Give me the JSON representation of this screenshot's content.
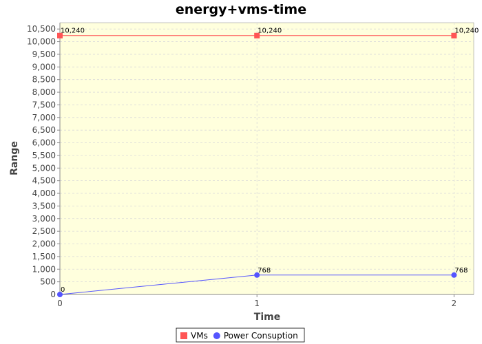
{
  "chart_data": {
    "type": "line",
    "title": "energy+vms-time",
    "xlabel": "Time",
    "ylabel": "Range",
    "x": [
      0,
      1,
      2
    ],
    "xlim": [
      0,
      2.1
    ],
    "ylim": [
      0,
      10750
    ],
    "xticks": [
      0,
      1,
      2
    ],
    "yticks": [
      0,
      500,
      1000,
      1500,
      2000,
      2500,
      3000,
      3500,
      4000,
      4500,
      5000,
      5500,
      6000,
      6500,
      7000,
      7500,
      8000,
      8500,
      9000,
      9500,
      10000,
      10500
    ],
    "grid": true,
    "legend_position": "bottom-center",
    "plot_background": "#ffffdd",
    "series": [
      {
        "name": "VMs",
        "values": [
          10240,
          10240,
          10240
        ],
        "labels": [
          "10,240",
          "10,240",
          "10,240"
        ],
        "color": "#ff5555",
        "marker": "square"
      },
      {
        "name": "Power Consuption",
        "values": [
          0,
          768,
          768
        ],
        "labels": [
          "0",
          "768",
          "768"
        ],
        "color": "#5555ff",
        "marker": "circle"
      }
    ]
  }
}
